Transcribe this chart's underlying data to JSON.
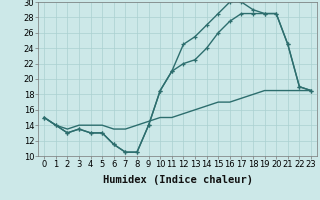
{
  "xlabel": "Humidex (Indice chaleur)",
  "x": [
    0,
    1,
    2,
    3,
    4,
    5,
    6,
    7,
    8,
    9,
    10,
    11,
    12,
    13,
    14,
    15,
    16,
    17,
    18,
    19,
    20,
    21,
    22,
    23
  ],
  "line1_y": [
    15,
    14,
    13,
    13.5,
    13,
    13,
    11.5,
    10.5,
    10.5,
    14,
    18.5,
    21,
    24.5,
    25.5,
    27,
    28.5,
    30,
    30,
    29,
    28.5,
    28.5,
    24.5,
    19,
    18.5
  ],
  "line2_y": [
    15,
    14,
    13,
    13.5,
    13,
    13,
    11.5,
    10.5,
    10.5,
    14,
    18.5,
    21,
    22,
    22.5,
    24,
    26,
    27.5,
    28.5,
    28.5,
    28.5,
    28.5,
    24.5,
    19,
    18.5
  ],
  "line3_y": [
    15,
    14,
    13.5,
    14,
    14,
    14,
    13.5,
    13.5,
    14,
    14.5,
    15,
    15,
    15.5,
    16,
    16.5,
    17,
    17,
    17.5,
    18,
    18.5,
    18.5,
    18.5,
    18.5,
    18.5
  ],
  "line_color": "#2d6e6e",
  "bg_color": "#cce8e8",
  "grid_color": "#aad0d0",
  "ylim": [
    10,
    30
  ],
  "xlim": [
    -0.5,
    23.5
  ],
  "yticks": [
    10,
    12,
    14,
    16,
    18,
    20,
    22,
    24,
    26,
    28,
    30
  ],
  "xticks": [
    0,
    1,
    2,
    3,
    4,
    5,
    6,
    7,
    8,
    9,
    10,
    11,
    12,
    13,
    14,
    15,
    16,
    17,
    18,
    19,
    20,
    21,
    22,
    23
  ],
  "xtick_labels": [
    "0",
    "1",
    "2",
    "3",
    "4",
    "5",
    "6",
    "7",
    "8",
    "9",
    "10",
    "11",
    "12",
    "13",
    "14",
    "15",
    "16",
    "17",
    "18",
    "19",
    "20",
    "21",
    "22",
    "23"
  ],
  "marker": "+",
  "marker_size": 3.5,
  "linewidth": 1.0,
  "xlabel_fontsize": 7.5,
  "tick_fontsize": 6.0
}
